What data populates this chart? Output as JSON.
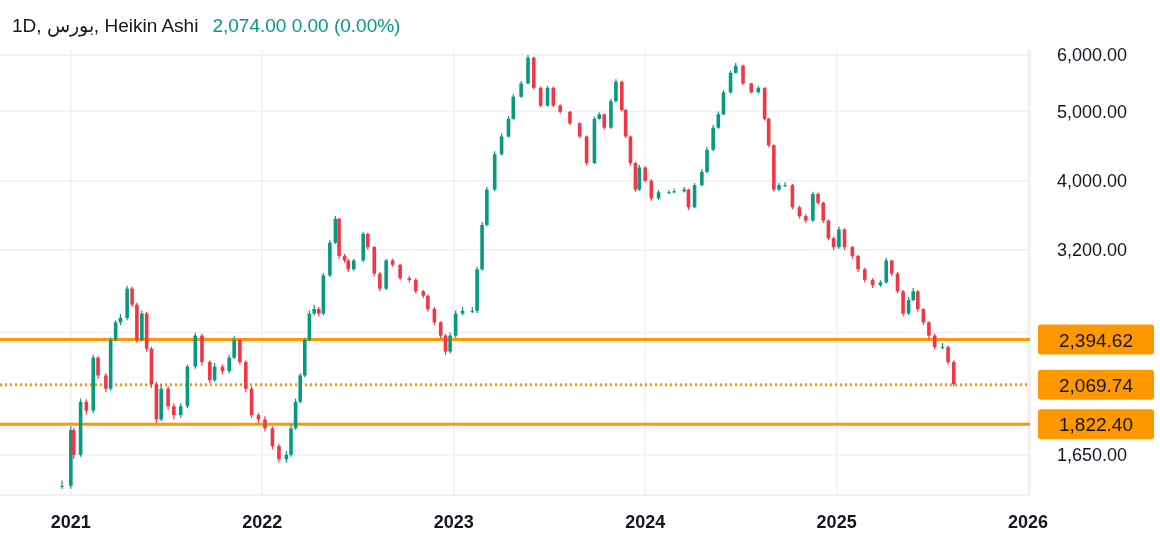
{
  "chart_data": {
    "type": "candlestick",
    "title": "1D, بورس, Heikin Ashi",
    "subtitle": "2,074.00 0.00 (0.00%)",
    "colors": [
      "#089981",
      "#089981",
      "#f23645",
      "#089981",
      "#f23645",
      "#089981",
      "#f23645",
      "#f23645",
      "#089981",
      "#089981",
      "#089981",
      "#089981",
      "#f23645",
      "#f23645",
      "#089981",
      "#f23645",
      "#f23645",
      "#f23645",
      "#089981",
      "#f23645",
      "#f23645",
      "#089981",
      "#089981",
      "#089981",
      "#f23645",
      "#f23645",
      "#089981",
      "#f23645",
      "#089981",
      "#089981",
      "#f23645",
      "#f23645",
      "#f23645",
      "#f23645",
      "#f23645",
      "#f23645",
      "#f23645",
      "#089981",
      "#089981",
      "#089981",
      "#089981",
      "#089981",
      "#089981",
      "#089981",
      "#f23645",
      "#089981",
      "#089981",
      "#089981",
      "#f23645",
      "#f23645",
      "#f23645",
      "#089981",
      "#089981",
      "#f23645",
      "#f23645",
      "#f23645",
      "#089981",
      "#f23645",
      "#f23645",
      "#f23645",
      "#f23645",
      "#f23645",
      "#f23645",
      "#f23645",
      "#f23645",
      "#f23645",
      "#089981",
      "#089981",
      "#089981",
      "#089981",
      "#089981",
      "#089981",
      "#089981",
      "#089981",
      "#089981",
      "#089981",
      "#089981",
      "#089981",
      "#089981",
      "#f23645",
      "#f23645",
      "#089981",
      "#f23645",
      "#f23645",
      "#f23645",
      "#f23645",
      "#f23645",
      "#089981",
      "#089981",
      "#f23645",
      "#089981",
      "#089981",
      "#f23645",
      "#f23645",
      "#f23645",
      "#f23645",
      "#089981",
      "#f23645",
      "#f23645",
      "#089981",
      "#089981",
      "#089981",
      "#089981",
      "#f23645",
      "#089981",
      "#089981",
      "#089981",
      "#089981",
      "#089981",
      "#089981",
      "#089981",
      "#089981",
      "#f23645",
      "#f23645",
      "#089981",
      "#f23645",
      "#f23645",
      "#f23645",
      "#089981",
      "#089981",
      "#f23645",
      "#f23645",
      "#f23645",
      "#089981",
      "#f23645",
      "#f23645",
      "#f23645",
      "#f23645",
      "#089981",
      "#f23645",
      "#f23645",
      "#f23645",
      "#f23645",
      "#f23645",
      "#089981",
      "#089981",
      "#f23645",
      "#f23645",
      "#f23645",
      "#089981",
      "#089981",
      "#f23645",
      "#f23645",
      "#f23645",
      "#f23645",
      "#089981",
      "#f23645",
      "#f23645"
    ],
    "x": [
      2020.954,
      2021.0,
      2021.015,
      2021.051,
      2021.081,
      2021.117,
      2021.142,
      2021.183,
      2021.208,
      2021.234,
      2021.259,
      2021.294,
      2021.32,
      2021.345,
      2021.371,
      2021.396,
      2021.421,
      2021.447,
      2021.472,
      2021.508,
      2021.538,
      2021.574,
      2021.609,
      2021.65,
      2021.685,
      2021.726,
      2021.751,
      2021.792,
      2021.827,
      2021.853,
      2021.883,
      2021.914,
      2021.944,
      2021.98,
      2022.014,
      2022.053,
      2022.087,
      2022.126,
      2022.15,
      2022.174,
      2022.198,
      2022.222,
      2022.246,
      2022.271,
      2022.295,
      2022.319,
      2022.353,
      2022.382,
      2022.401,
      2022.43,
      2022.449,
      2022.478,
      2022.527,
      2022.551,
      2022.585,
      2022.614,
      2022.647,
      2022.681,
      2022.72,
      2022.768,
      2022.802,
      2022.841,
      2022.865,
      2022.899,
      2022.932,
      2022.957,
      2022.981,
      2023.01,
      2023.046,
      2023.097,
      2023.122,
      2023.148,
      2023.173,
      2023.214,
      2023.25,
      2023.286,
      2023.311,
      2023.352,
      2023.388,
      2023.418,
      2023.454,
      2023.49,
      2023.52,
      2023.556,
      2023.607,
      2023.658,
      2023.694,
      2023.735,
      2023.76,
      2023.786,
      2023.821,
      2023.847,
      2023.878,
      2023.898,
      2023.923,
      2023.949,
      2023.969,
      2024.0,
      2024.032,
      2024.07,
      2024.124,
      2024.151,
      2024.204,
      2024.226,
      2024.258,
      2024.296,
      2024.323,
      2024.355,
      2024.382,
      2024.409,
      2024.446,
      2024.473,
      2024.511,
      2024.554,
      2024.591,
      2024.624,
      2024.645,
      2024.672,
      2024.699,
      2024.731,
      2024.769,
      2024.806,
      2024.839,
      2024.876,
      2024.903,
      2024.93,
      2024.957,
      2024.984,
      2025.012,
      2025.041,
      2025.082,
      2025.112,
      2025.147,
      2025.188,
      2025.229,
      2025.259,
      2025.288,
      2025.318,
      2025.347,
      2025.376,
      2025.4,
      2025.424,
      2025.453,
      2025.482,
      2025.512,
      2025.553,
      2025.582,
      2025.612
    ],
    "ohlc": [
      [
        1494,
        1520,
        1480,
        1494
      ],
      [
        1494,
        1810,
        1480,
        1788
      ],
      [
        1788,
        1800,
        1630,
        1651
      ],
      [
        1651,
        1980,
        1640,
        1959
      ],
      [
        1959,
        1975,
        1880,
        1904
      ],
      [
        1904,
        2280,
        1890,
        2259
      ],
      [
        2259,
        2270,
        2110,
        2133
      ],
      [
        2133,
        2150,
        2020,
        2044
      ],
      [
        2044,
        2410,
        2030,
        2392
      ],
      [
        2392,
        2550,
        2380,
        2532
      ],
      [
        2532,
        2600,
        2510,
        2568
      ],
      [
        2568,
        2850,
        2550,
        2823
      ],
      [
        2823,
        2840,
        2660,
        2681
      ],
      [
        2681,
        2700,
        2370,
        2392
      ],
      [
        2392,
        2630,
        2380,
        2605
      ],
      [
        2605,
        2620,
        2300,
        2325
      ],
      [
        2325,
        2340,
        2050,
        2073
      ],
      [
        2073,
        2090,
        1830,
        1851
      ],
      [
        1851,
        2070,
        1840,
        2044
      ],
      [
        2044,
        2060,
        1910,
        1931
      ],
      [
        1931,
        1950,
        1850,
        1877
      ],
      [
        1877,
        1950,
        1860,
        1931
      ],
      [
        1931,
        2210,
        1920,
        2195
      ],
      [
        2195,
        2450,
        2180,
        2426
      ],
      [
        2426,
        2440,
        2200,
        2227
      ],
      [
        2227,
        2240,
        2080,
        2100
      ],
      [
        2100,
        2220,
        2090,
        2195
      ],
      [
        2195,
        2210,
        2140,
        2164
      ],
      [
        2164,
        2280,
        2150,
        2259
      ],
      [
        2259,
        2420,
        2250,
        2392
      ],
      [
        2392,
        2400,
        2210,
        2227
      ],
      [
        2227,
        2240,
        2020,
        2044
      ],
      [
        2044,
        2060,
        1860,
        1877
      ],
      [
        1877,
        1890,
        1830,
        1851
      ],
      [
        1851,
        1870,
        1780,
        1798
      ],
      [
        1798,
        1810,
        1680,
        1698
      ],
      [
        1698,
        1710,
        1610,
        1628
      ],
      [
        1628,
        1670,
        1610,
        1651
      ],
      [
        1651,
        1820,
        1640,
        1798
      ],
      [
        1798,
        1980,
        1790,
        1959
      ],
      [
        1959,
        2150,
        1950,
        2133
      ],
      [
        2133,
        2410,
        2120,
        2392
      ],
      [
        2392,
        2630,
        2380,
        2605
      ],
      [
        2605,
        2680,
        2590,
        2643
      ],
      [
        2643,
        2660,
        2580,
        2605
      ],
      [
        2605,
        2970,
        2590,
        2946
      ],
      [
        2946,
        3300,
        2930,
        3274
      ],
      [
        3274,
        3570,
        3260,
        3537
      ],
      [
        3537,
        3550,
        3110,
        3137
      ],
      [
        3137,
        3160,
        3070,
        3092
      ],
      [
        3092,
        3110,
        2980,
        3005
      ],
      [
        3005,
        3110,
        2990,
        3092
      ],
      [
        3092,
        3390,
        3080,
        3369
      ],
      [
        3369,
        3380,
        3200,
        3228
      ],
      [
        3228,
        3240,
        2940,
        2963
      ],
      [
        2963,
        2980,
        2800,
        2823
      ],
      [
        2823,
        3110,
        2810,
        3092
      ],
      [
        3092,
        3110,
        3030,
        3049
      ],
      [
        3049,
        3060,
        2900,
        2921
      ],
      [
        2921,
        2940,
        2880,
        2904
      ],
      [
        2904,
        2920,
        2780,
        2799
      ],
      [
        2799,
        2810,
        2740,
        2759
      ],
      [
        2759,
        2770,
        2620,
        2643
      ],
      [
        2643,
        2660,
        2510,
        2532
      ],
      [
        2532,
        2540,
        2400,
        2426
      ],
      [
        2426,
        2440,
        2280,
        2304
      ],
      [
        2304,
        2450,
        2290,
        2426
      ],
      [
        2426,
        2630,
        2410,
        2605
      ],
      [
        2605,
        2660,
        2590,
        2628
      ],
      [
        2628,
        2660,
        2610,
        2628
      ],
      [
        2628,
        3030,
        2610,
        3005
      ],
      [
        3005,
        3500,
        2990,
        3467
      ],
      [
        3467,
        3920,
        3450,
        3887
      ],
      [
        3887,
        4400,
        3870,
        4357
      ],
      [
        4357,
        4660,
        4340,
        4614
      ],
      [
        4614,
        4930,
        4600,
        4884
      ],
      [
        4884,
        5290,
        4870,
        5246
      ],
      [
        5246,
        5520,
        5230,
        5476
      ],
      [
        5476,
        6000,
        5460,
        5950
      ],
      [
        5950,
        5970,
        5370,
        5398
      ],
      [
        5398,
        5420,
        5070,
        5098
      ],
      [
        5098,
        5430,
        5080,
        5398
      ],
      [
        5398,
        5420,
        5070,
        5098
      ],
      [
        5098,
        5120,
        4970,
        4997
      ],
      [
        4997,
        5010,
        4790,
        4815
      ],
      [
        4815,
        4830,
        4590,
        4614
      ],
      [
        4614,
        4630,
        4200,
        4235
      ],
      [
        4235,
        4920,
        4220,
        4884
      ],
      [
        4884,
        4990,
        4870,
        4955
      ],
      [
        4955,
        4970,
        4720,
        4747
      ],
      [
        4747,
        5210,
        4730,
        5171
      ],
      [
        5171,
        5550,
        5150,
        5507
      ],
      [
        5507,
        5530,
        5000,
        5026
      ],
      [
        5026,
        5040,
        4590,
        4614
      ],
      [
        4614,
        4630,
        4200,
        4235
      ],
      [
        4235,
        4250,
        3860,
        3887
      ],
      [
        3887,
        4210,
        3870,
        4175
      ],
      [
        4175,
        4190,
        3980,
        4000
      ],
      [
        4000,
        4020,
        3750,
        3778
      ],
      [
        3778,
        3880,
        3760,
        3854
      ],
      [
        3854,
        3880,
        3830,
        3854
      ],
      [
        3854,
        3900,
        3840,
        3865
      ],
      [
        3865,
        3920,
        3850,
        3887
      ],
      [
        3887,
        3900,
        3640,
        3672
      ],
      [
        3672,
        3970,
        3660,
        3943
      ],
      [
        3943,
        4150,
        3930,
        4116
      ],
      [
        4116,
        4460,
        4100,
        4420
      ],
      [
        4420,
        4790,
        4400,
        4747
      ],
      [
        4747,
        5000,
        4730,
        4955
      ],
      [
        4955,
        5360,
        4940,
        5321
      ],
      [
        5321,
        5710,
        5300,
        5667
      ],
      [
        5667,
        5850,
        5650,
        5798
      ],
      [
        5798,
        5820,
        5450,
        5476
      ],
      [
        5476,
        5490,
        5300,
        5321
      ],
      [
        5321,
        5430,
        5300,
        5398
      ],
      [
        5398,
        5410,
        4860,
        4884
      ],
      [
        4884,
        4900,
        4460,
        4484
      ],
      [
        4484,
        4500,
        3860,
        3887
      ],
      [
        3887,
        3970,
        3870,
        3943
      ],
      [
        3943,
        3980,
        3920,
        3943
      ],
      [
        3943,
        3960,
        3650,
        3672
      ],
      [
        3672,
        3690,
        3540,
        3568
      ],
      [
        3568,
        3590,
        3490,
        3517
      ],
      [
        3517,
        3860,
        3500,
        3832
      ],
      [
        3832,
        3850,
        3700,
        3725
      ],
      [
        3725,
        3740,
        3490,
        3517
      ],
      [
        3517,
        3530,
        3300,
        3322
      ],
      [
        3322,
        3340,
        3200,
        3228
      ],
      [
        3228,
        3450,
        3210,
        3418
      ],
      [
        3418,
        3430,
        3200,
        3228
      ],
      [
        3228,
        3240,
        3110,
        3137
      ],
      [
        3137,
        3150,
        2980,
        3005
      ],
      [
        3005,
        3020,
        2880,
        2904
      ],
      [
        2904,
        2920,
        2830,
        2855
      ],
      [
        2855,
        2900,
        2840,
        2880
      ],
      [
        2880,
        3120,
        2870,
        3092
      ],
      [
        3092,
        3100,
        2940,
        2963
      ],
      [
        2963,
        2980,
        2780,
        2799
      ],
      [
        2799,
        2810,
        2580,
        2605
      ],
      [
        2605,
        2750,
        2590,
        2720
      ],
      [
        2720,
        2830,
        2710,
        2799
      ],
      [
        2799,
        2810,
        2620,
        2643
      ],
      [
        2643,
        2650,
        2510,
        2532
      ],
      [
        2532,
        2540,
        2400,
        2426
      ],
      [
        2426,
        2440,
        2320,
        2338
      ],
      [
        2338,
        2370,
        2320,
        2338
      ],
      [
        2338,
        2350,
        2210,
        2227
      ],
      [
        2227,
        2240,
        2060,
        2074
      ]
    ],
    "log": true,
    "xlim": [
      2020.63,
      2026.01
    ],
    "ylim": [
      1450,
      6100
    ],
    "xticks": [
      2021,
      2022,
      2023,
      2024,
      2025,
      2026
    ],
    "yticks": [
      {
        "value": 1650,
        "label": "1,650.00"
      },
      {
        "value": 2450,
        "label": null
      },
      {
        "value": 3200,
        "label": "3,200.00"
      },
      {
        "value": 4000,
        "label": "4,000.00"
      },
      {
        "value": 5000,
        "label": "5,000.00"
      },
      {
        "value": 6000,
        "label": "6,000.00"
      }
    ],
    "grid": true,
    "ref_lines": [
      {
        "axis": "y",
        "value": 2394.62,
        "label": "2,394.62",
        "color": "#ff9800",
        "line_style": "solid"
      },
      {
        "axis": "y",
        "value": 2069.74,
        "label": "2,069.74",
        "color": "#ff9800",
        "line_style": "dotted"
      },
      {
        "axis": "y",
        "value": 1822.4,
        "label": "1,822.40",
        "color": "#ff9800",
        "line_style": "solid"
      }
    ]
  }
}
